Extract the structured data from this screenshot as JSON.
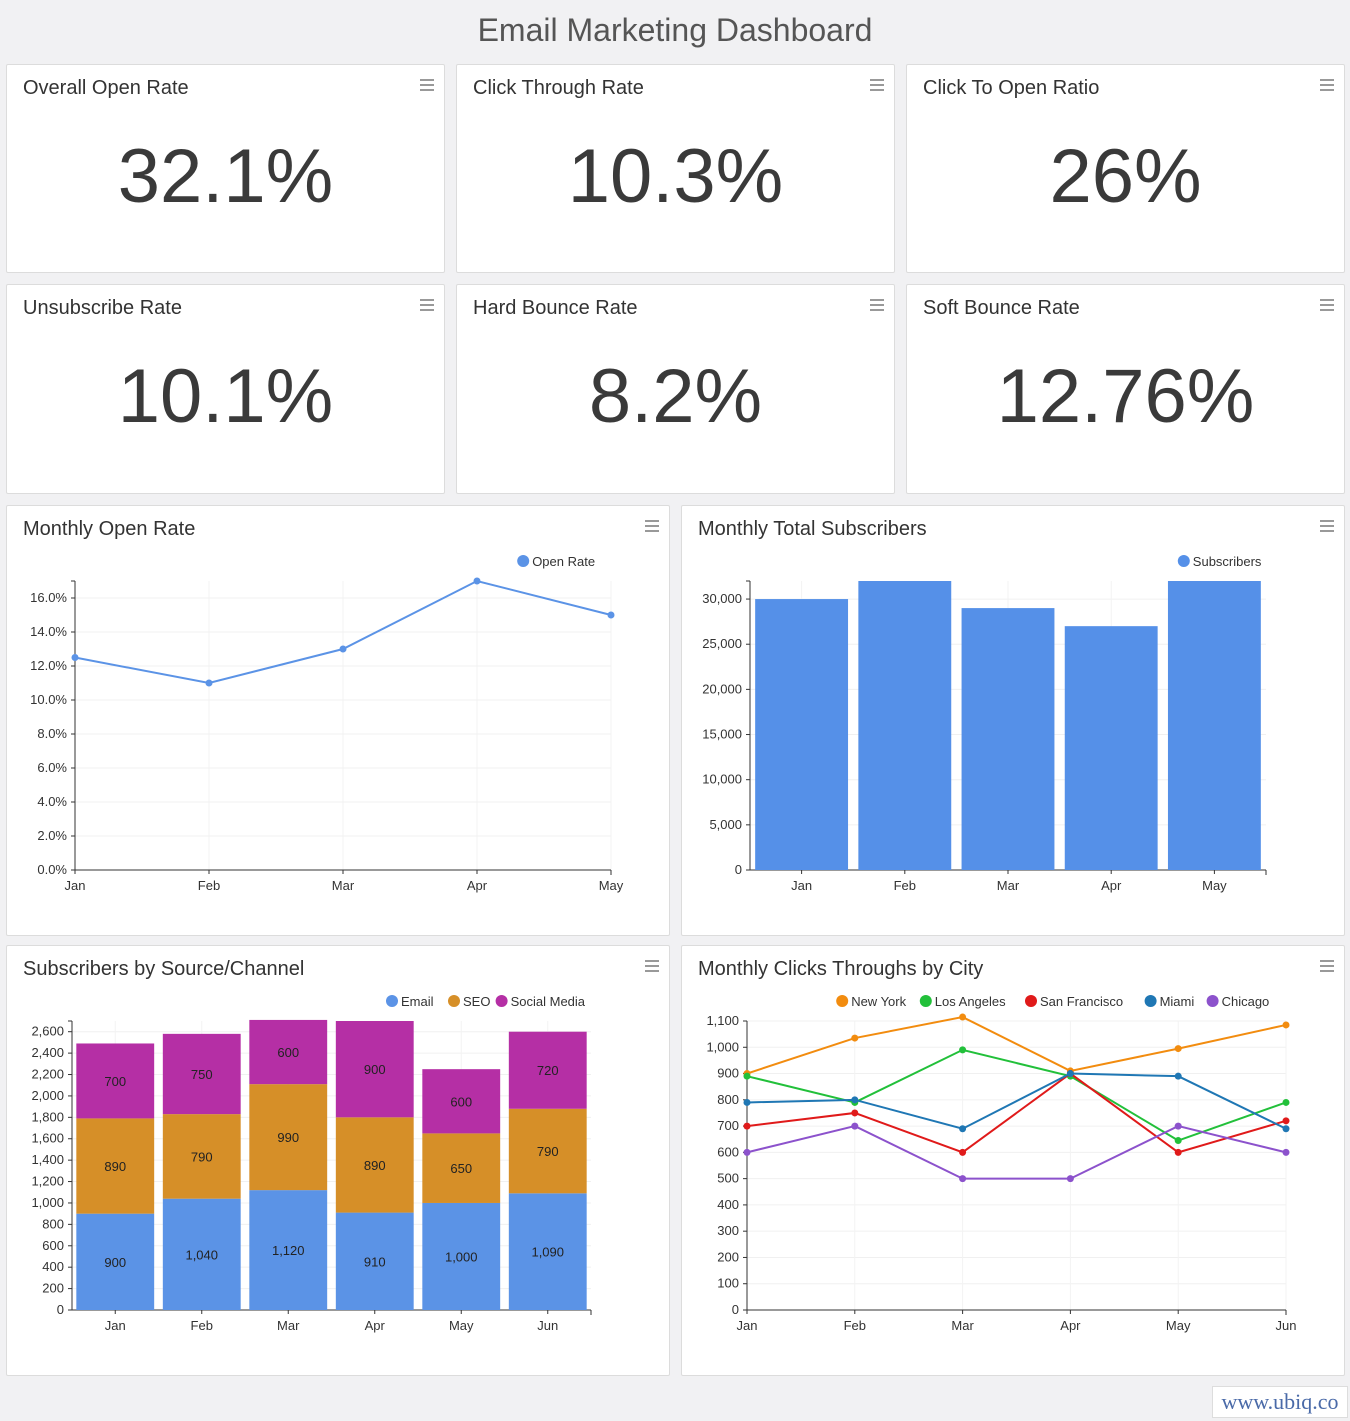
{
  "header": {
    "title": "Email Marketing Dashboard"
  },
  "kpis": [
    {
      "title": "Overall Open Rate",
      "value": "32.1%"
    },
    {
      "title": "Click Through Rate",
      "value": "10.3%"
    },
    {
      "title": "Click To Open Ratio",
      "value": "26%"
    },
    {
      "title": "Unsubscribe Rate",
      "value": "10.1%"
    },
    {
      "title": "Hard Bounce Rate",
      "value": "8.2%"
    },
    {
      "title": "Soft Bounce Rate",
      "value": "12.76%"
    }
  ],
  "charts": {
    "open_rate": {
      "title": "Monthly Open Rate"
    },
    "subscribers": {
      "title": "Monthly Total Subscribers"
    },
    "source": {
      "title": "Subscribers by Source/Channel"
    },
    "city": {
      "title": "Monthly Clicks Throughs by City"
    }
  },
  "chart_data": [
    {
      "id": "open_rate",
      "type": "line",
      "title": "Monthly Open Rate",
      "categories": [
        "Jan",
        "Feb",
        "Mar",
        "Apr",
        "May"
      ],
      "series": [
        {
          "name": "Open Rate",
          "color": "#5b93e6",
          "values": [
            12.5,
            11.0,
            13.0,
            17.0,
            15.0
          ]
        }
      ],
      "ylim": [
        0,
        17
      ],
      "yticks": [
        0,
        2,
        4,
        6,
        8,
        10,
        12,
        14,
        16
      ],
      "ytick_labels": [
        "0.0%",
        "2.0%",
        "4.0%",
        "6.0%",
        "8.0%",
        "10.0%",
        "12.0%",
        "14.0%",
        "16.0%"
      ],
      "legend": "top-right",
      "grid": true
    },
    {
      "id": "subscribers",
      "type": "bar",
      "title": "Monthly Total Subscribers",
      "categories": [
        "Jan",
        "Feb",
        "Mar",
        "Apr",
        "May"
      ],
      "series": [
        {
          "name": "Subscribers",
          "color": "#5590e8",
          "values": [
            30000,
            32000,
            29000,
            27000,
            32000
          ]
        }
      ],
      "ylim": [
        0,
        32000
      ],
      "yticks": [
        0,
        5000,
        10000,
        15000,
        20000,
        25000,
        30000
      ],
      "ytick_labels": [
        "0",
        "5,000",
        "10,000",
        "15,000",
        "20,000",
        "25,000",
        "30,000"
      ],
      "legend": "top-right",
      "grid": true
    },
    {
      "id": "source",
      "type": "stacked-bar",
      "title": "Subscribers by Source/Channel",
      "categories": [
        "Jan",
        "Feb",
        "Mar",
        "Apr",
        "May",
        "Jun"
      ],
      "series": [
        {
          "name": "Email",
          "color": "#5b93e6",
          "values": [
            900,
            1040,
            1120,
            910,
            1000,
            1090
          ],
          "labels": [
            "900",
            "1,040",
            "1,120",
            "910",
            "1,000",
            "1,090"
          ]
        },
        {
          "name": "SEO",
          "color": "#d68f28",
          "values": [
            890,
            790,
            990,
            890,
            650,
            790
          ],
          "labels": [
            "890",
            "790",
            "990",
            "890",
            "650",
            "790"
          ]
        },
        {
          "name": "Social Media",
          "color": "#b52fa5",
          "values": [
            700,
            750,
            600,
            900,
            600,
            720
          ],
          "labels": [
            "700",
            "750",
            "600",
            "900",
            "600",
            "720"
          ]
        }
      ],
      "ylim": [
        0,
        2700
      ],
      "yticks": [
        0,
        200,
        400,
        600,
        800,
        1000,
        1200,
        1400,
        1600,
        1800,
        2000,
        2200,
        2400,
        2600
      ],
      "ytick_labels": [
        "0",
        "200",
        "400",
        "600",
        "800",
        "1,000",
        "1,200",
        "1,400",
        "1,600",
        "1,800",
        "2,000",
        "2,200",
        "2,400",
        "2,600"
      ],
      "legend": "top-right",
      "grid": true
    },
    {
      "id": "city",
      "type": "line",
      "title": "Monthly Clicks Throughs by City",
      "categories": [
        "Jan",
        "Feb",
        "Mar",
        "Apr",
        "May",
        "Jun"
      ],
      "series": [
        {
          "name": "New York",
          "color": "#f28c0f",
          "values": [
            900,
            1035,
            1115,
            910,
            995,
            1085
          ]
        },
        {
          "name": "Los Angeles",
          "color": "#22c03a",
          "values": [
            890,
            790,
            990,
            890,
            645,
            790
          ]
        },
        {
          "name": "San Francisco",
          "color": "#e01a1a",
          "values": [
            700,
            750,
            600,
            900,
            600,
            720
          ]
        },
        {
          "name": "Miami",
          "color": "#1f77b4",
          "values": [
            790,
            800,
            690,
            900,
            890,
            690
          ]
        },
        {
          "name": "Chicago",
          "color": "#8c52cc",
          "values": [
            600,
            700,
            500,
            500,
            700,
            600
          ]
        }
      ],
      "ylim": [
        0,
        1100
      ],
      "yticks": [
        0,
        100,
        200,
        300,
        400,
        500,
        600,
        700,
        800,
        900,
        1000,
        1100
      ],
      "ytick_labels": [
        "0",
        "100",
        "200",
        "300",
        "400",
        "500",
        "600",
        "700",
        "800",
        "900",
        "1,000",
        "1,100"
      ],
      "legend": "top-right",
      "grid": true
    }
  ],
  "footer": {
    "watermark": "www.ubiq.co"
  }
}
